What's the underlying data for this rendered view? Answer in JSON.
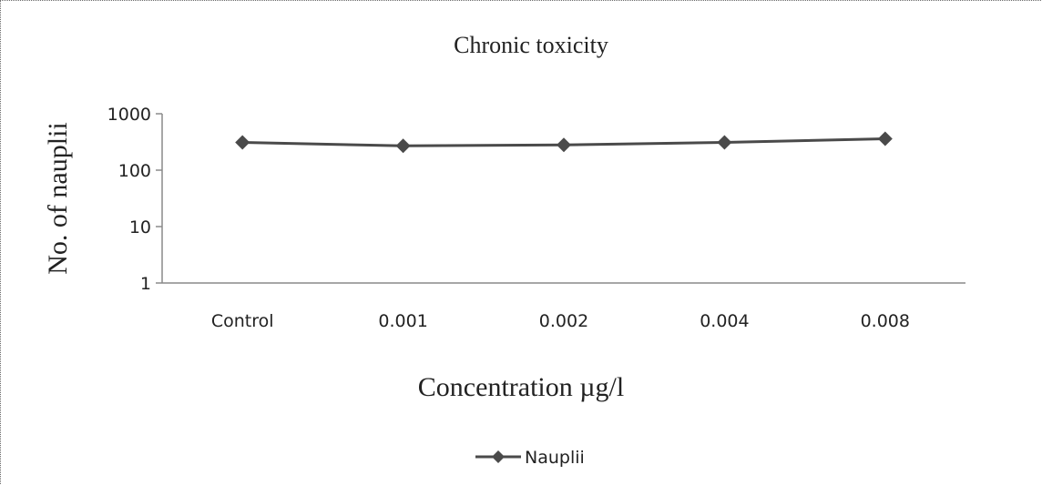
{
  "chart_data": {
    "type": "line",
    "title": "Chronic toxicity",
    "xlabel": "Concentration µg/l",
    "ylabel": "No. of nauplii",
    "y_scale": "log",
    "ylim": [
      1,
      1000
    ],
    "y_ticks": [
      "1",
      "10",
      "100",
      "1000"
    ],
    "categories": [
      "Control",
      "0.001",
      "0.002",
      "0.004",
      "0.008"
    ],
    "series": [
      {
        "name": "Nauplii",
        "values": [
          310,
          270,
          280,
          310,
          360
        ],
        "color": "#4a4a4a",
        "marker": "diamond"
      }
    ],
    "legend_position": "bottom",
    "grid": false
  }
}
